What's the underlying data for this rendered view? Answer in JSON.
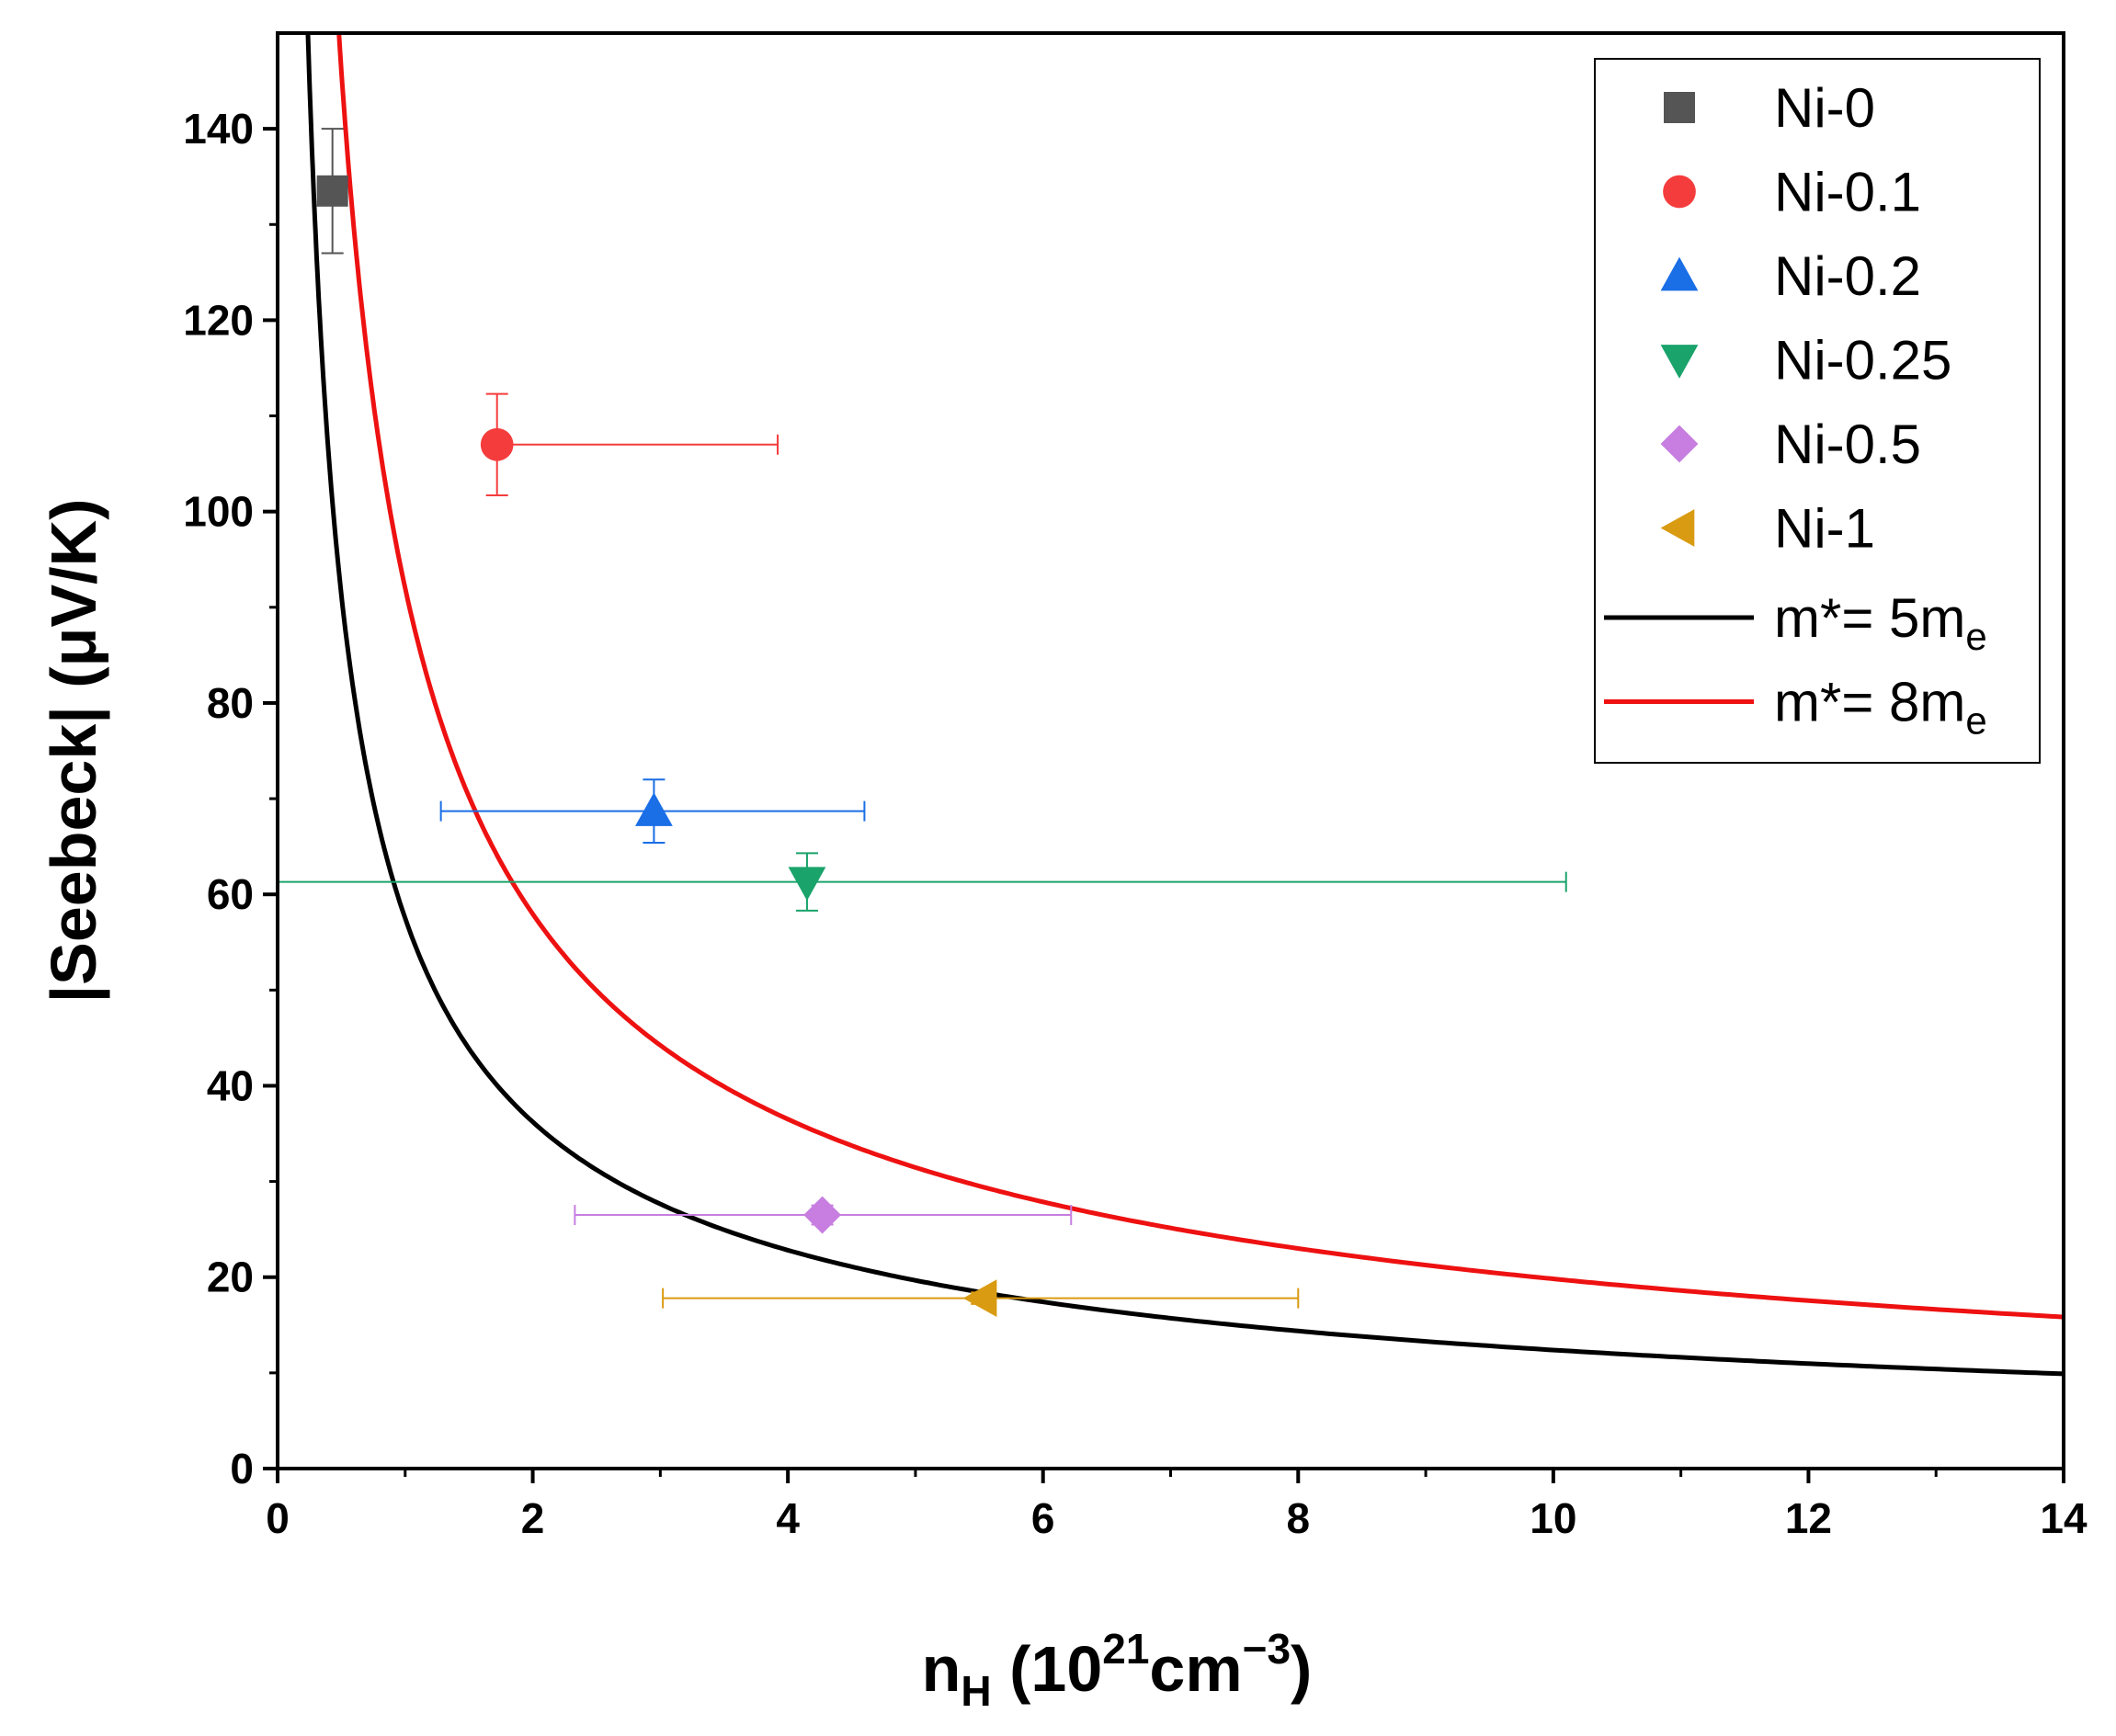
{
  "chart_data": {
    "type": "scatter",
    "xlabel": {
      "main": "n",
      "sub": "H",
      "rest": " (10",
      "sup1": "21",
      "unit": "cm",
      "sup2": "−3",
      "close": ")"
    },
    "ylabel": "|Seebeck| (μV/K)",
    "xlim": [
      0,
      14
    ],
    "ylim": [
      0,
      150
    ],
    "xticks": [
      0,
      2,
      4,
      6,
      8,
      10,
      12,
      14
    ],
    "yticks": [
      0,
      20,
      40,
      60,
      80,
      100,
      120,
      140
    ],
    "x_minor_step": 1,
    "y_minor_step": 10,
    "series": [
      {
        "name": "Ni-0",
        "marker": "square",
        "color": "#555555",
        "x": 0.43,
        "y": 133.5,
        "xerr": [
          0.43,
          0.43
        ],
        "yerr": [
          6.5,
          6.5
        ]
      },
      {
        "name": "Ni-0.1",
        "marker": "circle",
        "color": "#f53c3c",
        "x": 1.72,
        "y": 107.0,
        "xerr": [
          1.72,
          3.92
        ],
        "yerr": [
          5.3,
          5.3
        ]
      },
      {
        "name": "Ni-0.2",
        "marker": "triangle-up",
        "color": "#1a6ee6",
        "x": 2.95,
        "y": 68.7,
        "xerr": [
          1.28,
          4.6
        ],
        "yerr": [
          3.3,
          3.3
        ]
      },
      {
        "name": "Ni-0.25",
        "marker": "triangle-down",
        "color": "#1aa36b",
        "x": 4.15,
        "y": 61.3,
        "xerr": [
          0.0,
          10.1
        ],
        "yerr": [
          3.0,
          3.0
        ]
      },
      {
        "name": "Ni-0.5",
        "marker": "diamond",
        "color": "#c77ee0",
        "x": 4.27,
        "y": 26.5,
        "xerr": [
          2.33,
          6.22
        ],
        "yerr": [
          1.0,
          1.0
        ]
      },
      {
        "name": "Ni-1",
        "marker": "triangle-left",
        "color": "#d99b12",
        "x": 5.52,
        "y": 17.8,
        "xerr": [
          3.02,
          8.0
        ],
        "yerr": [
          0.6,
          0.6
        ]
      }
    ],
    "curves": [
      {
        "name": "m*= 5m",
        "sub": "e",
        "color": "#000000",
        "effective_mass": 5,
        "k_per_mass": 11.5
      },
      {
        "name": "m*= 8m",
        "sub": "e",
        "color": "#ee1111",
        "effective_mass": 8,
        "k_per_mass": 11.5
      }
    ],
    "legend_position": "top-right"
  }
}
